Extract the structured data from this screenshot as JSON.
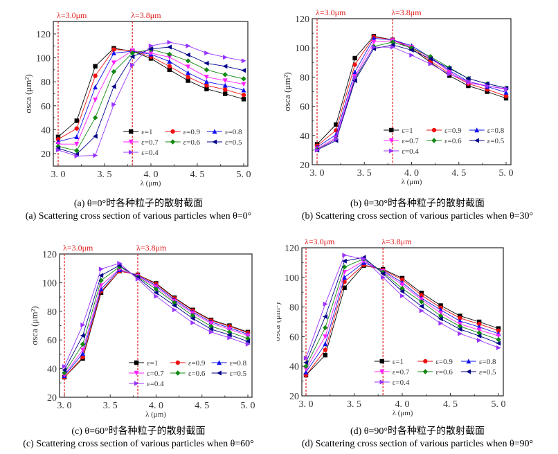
{
  "chart_data": [
    {
      "type": "line",
      "id": "a",
      "title": "",
      "xlabel": "λ (μm)",
      "ylabel": "σsca (μm²)",
      "xlim": [
        3.0,
        5.0
      ],
      "ylim": [
        10,
        130
      ],
      "xticks": [
        3.0,
        3.5,
        4.0,
        4.5,
        5.0
      ],
      "xtick_labels": [
        "3. 0",
        "3. 5",
        "4. 0",
        "4. 5",
        "5. 0"
      ],
      "yticks": [
        20,
        40,
        60,
        80,
        100,
        120
      ],
      "ytick_labels": [
        "20",
        "40",
        "60",
        "80",
        "100",
        "120"
      ],
      "grid": false,
      "legend_position": "bottom-right",
      "annotations": [
        {
          "x": 3.0,
          "label": "λ=3.0μm",
          "style": "dashed-vertical",
          "color": "#e02020"
        },
        {
          "x": 3.8,
          "label": "λ=3.8μm",
          "style": "dashed-vertical",
          "color": "#e02020"
        }
      ],
      "x": [
        3.0,
        3.2,
        3.4,
        3.6,
        3.8,
        4.0,
        4.2,
        4.4,
        4.6,
        4.8,
        5.0
      ],
      "series": [
        {
          "name": "ε=1",
          "color": "#000000",
          "marker": "square",
          "values": [
            34,
            47.5,
            93,
            108,
            105.5,
            99.5,
            90,
            81,
            74,
            70,
            65.5
          ]
        },
        {
          "name": "ε=0.9",
          "color": "#ee1111",
          "marker": "circle",
          "values": [
            32,
            41,
            85,
            107,
            106,
            101,
            93,
            84,
            77,
            73.5,
            69
          ]
        },
        {
          "name": "ε=0.8",
          "color": "#1111ee",
          "marker": "triangle-up",
          "values": [
            30,
            34,
            75.5,
            104,
            105.5,
            103,
            97,
            87.5,
            80,
            77,
            73
          ]
        },
        {
          "name": "ε=0.7",
          "color": "#ff22ff",
          "marker": "triangle-down",
          "values": [
            28,
            28,
            65,
            96,
            106,
            104,
            100.5,
            92.5,
            84,
            81,
            78
          ]
        },
        {
          "name": "ε=0.6",
          "color": "#118811",
          "marker": "diamond",
          "values": [
            26,
            22.5,
            50,
            88.5,
            104,
            107,
            103,
            97.5,
            90,
            86,
            82.5
          ]
        },
        {
          "name": "ε=0.5",
          "color": "#000088",
          "marker": "triangle-left",
          "values": [
            24.5,
            19.5,
            34.5,
            76,
            101,
            107.5,
            109,
            102.5,
            95.5,
            93,
            89.5
          ]
        },
        {
          "name": "ε=0.4",
          "color": "#9933ff",
          "marker": "triangle-right",
          "values": [
            23,
            18,
            18.5,
            61,
            94,
            110,
            113,
            110,
            104,
            100.5,
            97.5
          ]
        }
      ]
    },
    {
      "type": "line",
      "id": "b",
      "title": "",
      "xlabel": "λ (μm)",
      "ylabel": "σsca (μm²)",
      "xlim": [
        3.0,
        5.0
      ],
      "ylim": [
        20,
        120
      ],
      "xticks": [
        3.0,
        3.5,
        4.0,
        4.5,
        5.0
      ],
      "xtick_labels": [
        "3. 0",
        "3. 5",
        "4. 0",
        "4. 5",
        "5. 0"
      ],
      "yticks": [
        20,
        40,
        60,
        80,
        100,
        120
      ],
      "ytick_labels": [
        "20",
        "40",
        "60",
        "80",
        "100",
        "120"
      ],
      "grid": false,
      "legend_position": "bottom-right",
      "annotations": [
        {
          "x": 3.0,
          "label": "λ=3.0μm",
          "style": "dashed-vertical",
          "color": "#e02020"
        },
        {
          "x": 3.8,
          "label": "λ=3.8μm",
          "style": "dashed-vertical",
          "color": "#e02020"
        }
      ],
      "x": [
        3.0,
        3.2,
        3.4,
        3.6,
        3.8,
        4.0,
        4.2,
        4.4,
        4.6,
        4.8,
        5.0
      ],
      "series": [
        {
          "name": "ε=1",
          "color": "#000000",
          "marker": "square",
          "values": [
            34,
            47.5,
            93,
            108,
            105.5,
            99.5,
            90,
            81,
            74,
            70,
            65.5
          ]
        },
        {
          "name": "ε=0.9",
          "color": "#ee1111",
          "marker": "circle",
          "values": [
            33,
            43.5,
            88.5,
            107.5,
            105.5,
            100.5,
            91,
            82.5,
            75.5,
            71.5,
            67
          ]
        },
        {
          "name": "ε=0.8",
          "color": "#1111ee",
          "marker": "triangle-up",
          "values": [
            32,
            40.5,
            83.5,
            106.5,
            105.5,
            101.5,
            93.5,
            84.5,
            77,
            73.5,
            69.5
          ]
        },
        {
          "name": "ε=0.7",
          "color": "#ff22ff",
          "marker": "triangle-down",
          "values": [
            31,
            38.5,
            80.5,
            104,
            105,
            100.5,
            93,
            83.5,
            76,
            74,
            71.5
          ]
        },
        {
          "name": "ε=0.6",
          "color": "#118811",
          "marker": "diamond",
          "values": [
            30.5,
            37.5,
            78.5,
            101,
            104,
            100,
            94,
            86.5,
            79,
            75.5,
            72.5
          ]
        },
        {
          "name": "ε=0.5",
          "color": "#000088",
          "marker": "triangle-left",
          "values": [
            30,
            36.5,
            77.5,
            99.5,
            102,
            98.5,
            92.5,
            86,
            79,
            75.5,
            72.5
          ]
        },
        {
          "name": "ε=0.4",
          "color": "#9933ff",
          "marker": "triangle-right",
          "values": [
            30,
            37.5,
            79.5,
            100.5,
            100.5,
            95,
            89,
            82,
            77,
            74,
            72
          ]
        }
      ]
    },
    {
      "type": "line",
      "id": "c",
      "title": "",
      "xlabel": "λ (μm)",
      "ylabel": "σsca (μm²)",
      "xlim": [
        3.0,
        5.0
      ],
      "ylim": [
        20,
        120
      ],
      "xticks": [
        3.0,
        3.5,
        4.0,
        4.5,
        5.0
      ],
      "xtick_labels": [
        "3. 0",
        "3. 5",
        "4. 0",
        "4. 5",
        "5. 0"
      ],
      "yticks": [
        20,
        40,
        60,
        80,
        100,
        120
      ],
      "ytick_labels": [
        "20",
        "40",
        "60",
        "80",
        "100",
        "120"
      ],
      "grid": false,
      "legend_position": "bottom-right",
      "annotations": [
        {
          "x": 3.0,
          "label": "λ=3.0μm",
          "style": "dashed-vertical",
          "color": "#e02020"
        },
        {
          "x": 3.8,
          "label": "λ=3.8μm",
          "style": "dashed-vertical",
          "color": "#e02020"
        }
      ],
      "x": [
        3.0,
        3.2,
        3.4,
        3.6,
        3.8,
        4.0,
        4.2,
        4.4,
        4.6,
        4.8,
        5.0
      ],
      "series": [
        {
          "name": "ε=1",
          "color": "#000000",
          "marker": "square",
          "values": [
            34,
            47,
            93,
            108,
            105.5,
            99.5,
            89.5,
            81,
            74,
            70,
            65.5
          ]
        },
        {
          "name": "ε=0.9",
          "color": "#ee1111",
          "marker": "circle",
          "values": [
            34,
            48,
            94,
            108,
            105.5,
            99,
            89,
            80.5,
            73.5,
            69.5,
            65
          ]
        },
        {
          "name": "ε=0.8",
          "color": "#1111ee",
          "marker": "triangle-up",
          "values": [
            35,
            50.5,
            95.5,
            109,
            105,
            98,
            88,
            79.5,
            72.5,
            68.5,
            64
          ]
        },
        {
          "name": "ε=0.7",
          "color": "#ff22ff",
          "marker": "triangle-down",
          "values": [
            35.5,
            53,
            98,
            109.5,
            104.5,
            97,
            87,
            78.5,
            71.5,
            67.5,
            63
          ]
        },
        {
          "name": "ε=0.6",
          "color": "#118811",
          "marker": "diamond",
          "values": [
            37,
            57,
            101.5,
            111,
            104,
            95.5,
            86,
            77,
            69.5,
            65.5,
            61
          ]
        },
        {
          "name": "ε=0.5",
          "color": "#000088",
          "marker": "triangle-left",
          "values": [
            39,
            63,
            105,
            112,
            103.5,
            93,
            84,
            75,
            67.5,
            63.5,
            59
          ]
        },
        {
          "name": "ε=0.4",
          "color": "#9933ff",
          "marker": "triangle-right",
          "values": [
            41.5,
            70.5,
            109.5,
            113.5,
            102.5,
            90.5,
            81,
            72,
            65.5,
            61.5,
            57
          ]
        }
      ]
    },
    {
      "type": "line",
      "id": "d",
      "title": "",
      "xlabel": "λ (μm)",
      "ylabel": "σsca (μm²)",
      "xlim": [
        3.0,
        5.0
      ],
      "ylim": [
        20,
        120
      ],
      "xticks": [
        3.0,
        3.5,
        4.0,
        4.5,
        5.0
      ],
      "xtick_labels": [
        "3. 0",
        "3. 5",
        "4. 0",
        "4. 5",
        "5. 0"
      ],
      "yticks": [
        20,
        40,
        60,
        80,
        100,
        120
      ],
      "ytick_labels": [
        "20",
        "40",
        "60",
        "80",
        "100",
        "120"
      ],
      "grid": false,
      "legend_position": "bottom-right",
      "annotations": [
        {
          "x": 3.0,
          "label": "λ=3.0μm",
          "style": "dashed-vertical",
          "color": "#e02020"
        },
        {
          "x": 3.8,
          "label": "λ=3.8μm",
          "style": "dashed-vertical",
          "color": "#e02020"
        }
      ],
      "x": [
        3.0,
        3.2,
        3.4,
        3.6,
        3.8,
        4.0,
        4.2,
        4.4,
        4.6,
        4.8,
        5.0
      ],
      "series": [
        {
          "name": "ε=1",
          "color": "#000000",
          "marker": "square",
          "values": [
            34,
            47.5,
            93,
            108,
            105.5,
            99.5,
            89.5,
            81,
            74,
            70,
            65.5
          ]
        },
        {
          "name": "ε=0.9",
          "color": "#ee1111",
          "marker": "circle",
          "values": [
            34,
            51,
            97,
            108.5,
            105,
            98.5,
            88,
            79.5,
            72.5,
            68.5,
            64
          ]
        },
        {
          "name": "ε=0.8",
          "color": "#1111ee",
          "marker": "triangle-up",
          "values": [
            36,
            55,
            100,
            110,
            104.5,
            96.5,
            86,
            78,
            70.5,
            66.5,
            62
          ]
        },
        {
          "name": "ε=0.7",
          "color": "#ff22ff",
          "marker": "triangle-down",
          "values": [
            38,
            60,
            103.5,
            111,
            104,
            95,
            85,
            76,
            68.5,
            64.5,
            60.5
          ]
        },
        {
          "name": "ε=0.6",
          "color": "#118811",
          "marker": "diamond",
          "values": [
            40,
            66,
            107,
            112.5,
            103.5,
            92.5,
            83.5,
            74,
            67,
            62.5,
            58
          ]
        },
        {
          "name": "ε=0.5",
          "color": "#000088",
          "marker": "triangle-left",
          "values": [
            42.5,
            73.5,
            111,
            113.5,
            102.5,
            90.5,
            80.5,
            72,
            65,
            60.5,
            55.5
          ]
        },
        {
          "name": "ε=0.4",
          "color": "#9933ff",
          "marker": "triangle-right",
          "values": [
            45.5,
            82,
            115,
            112.5,
            100,
            87.5,
            77.5,
            69,
            62,
            57.5,
            52.5
          ]
        }
      ]
    }
  ],
  "captions": [
    {
      "cn": "(a) θ=0°时各种粒子的散射截面",
      "en": "(a) Scattering cross section of various particles when θ=0°"
    },
    {
      "cn": "(b) θ=30°时各种粒子的散射截面",
      "en": "(b) Scattering cross section of various particles when θ=30°"
    },
    {
      "cn": "(c) θ=60°时各种粒子的散射截面",
      "en": "(c) Scattering cross section of various particles when θ=60°"
    },
    {
      "cn": "(d) θ=90°时各种粒子的散射截面",
      "en": "(d) Scattering cross section of various particles when θ=90°"
    }
  ]
}
